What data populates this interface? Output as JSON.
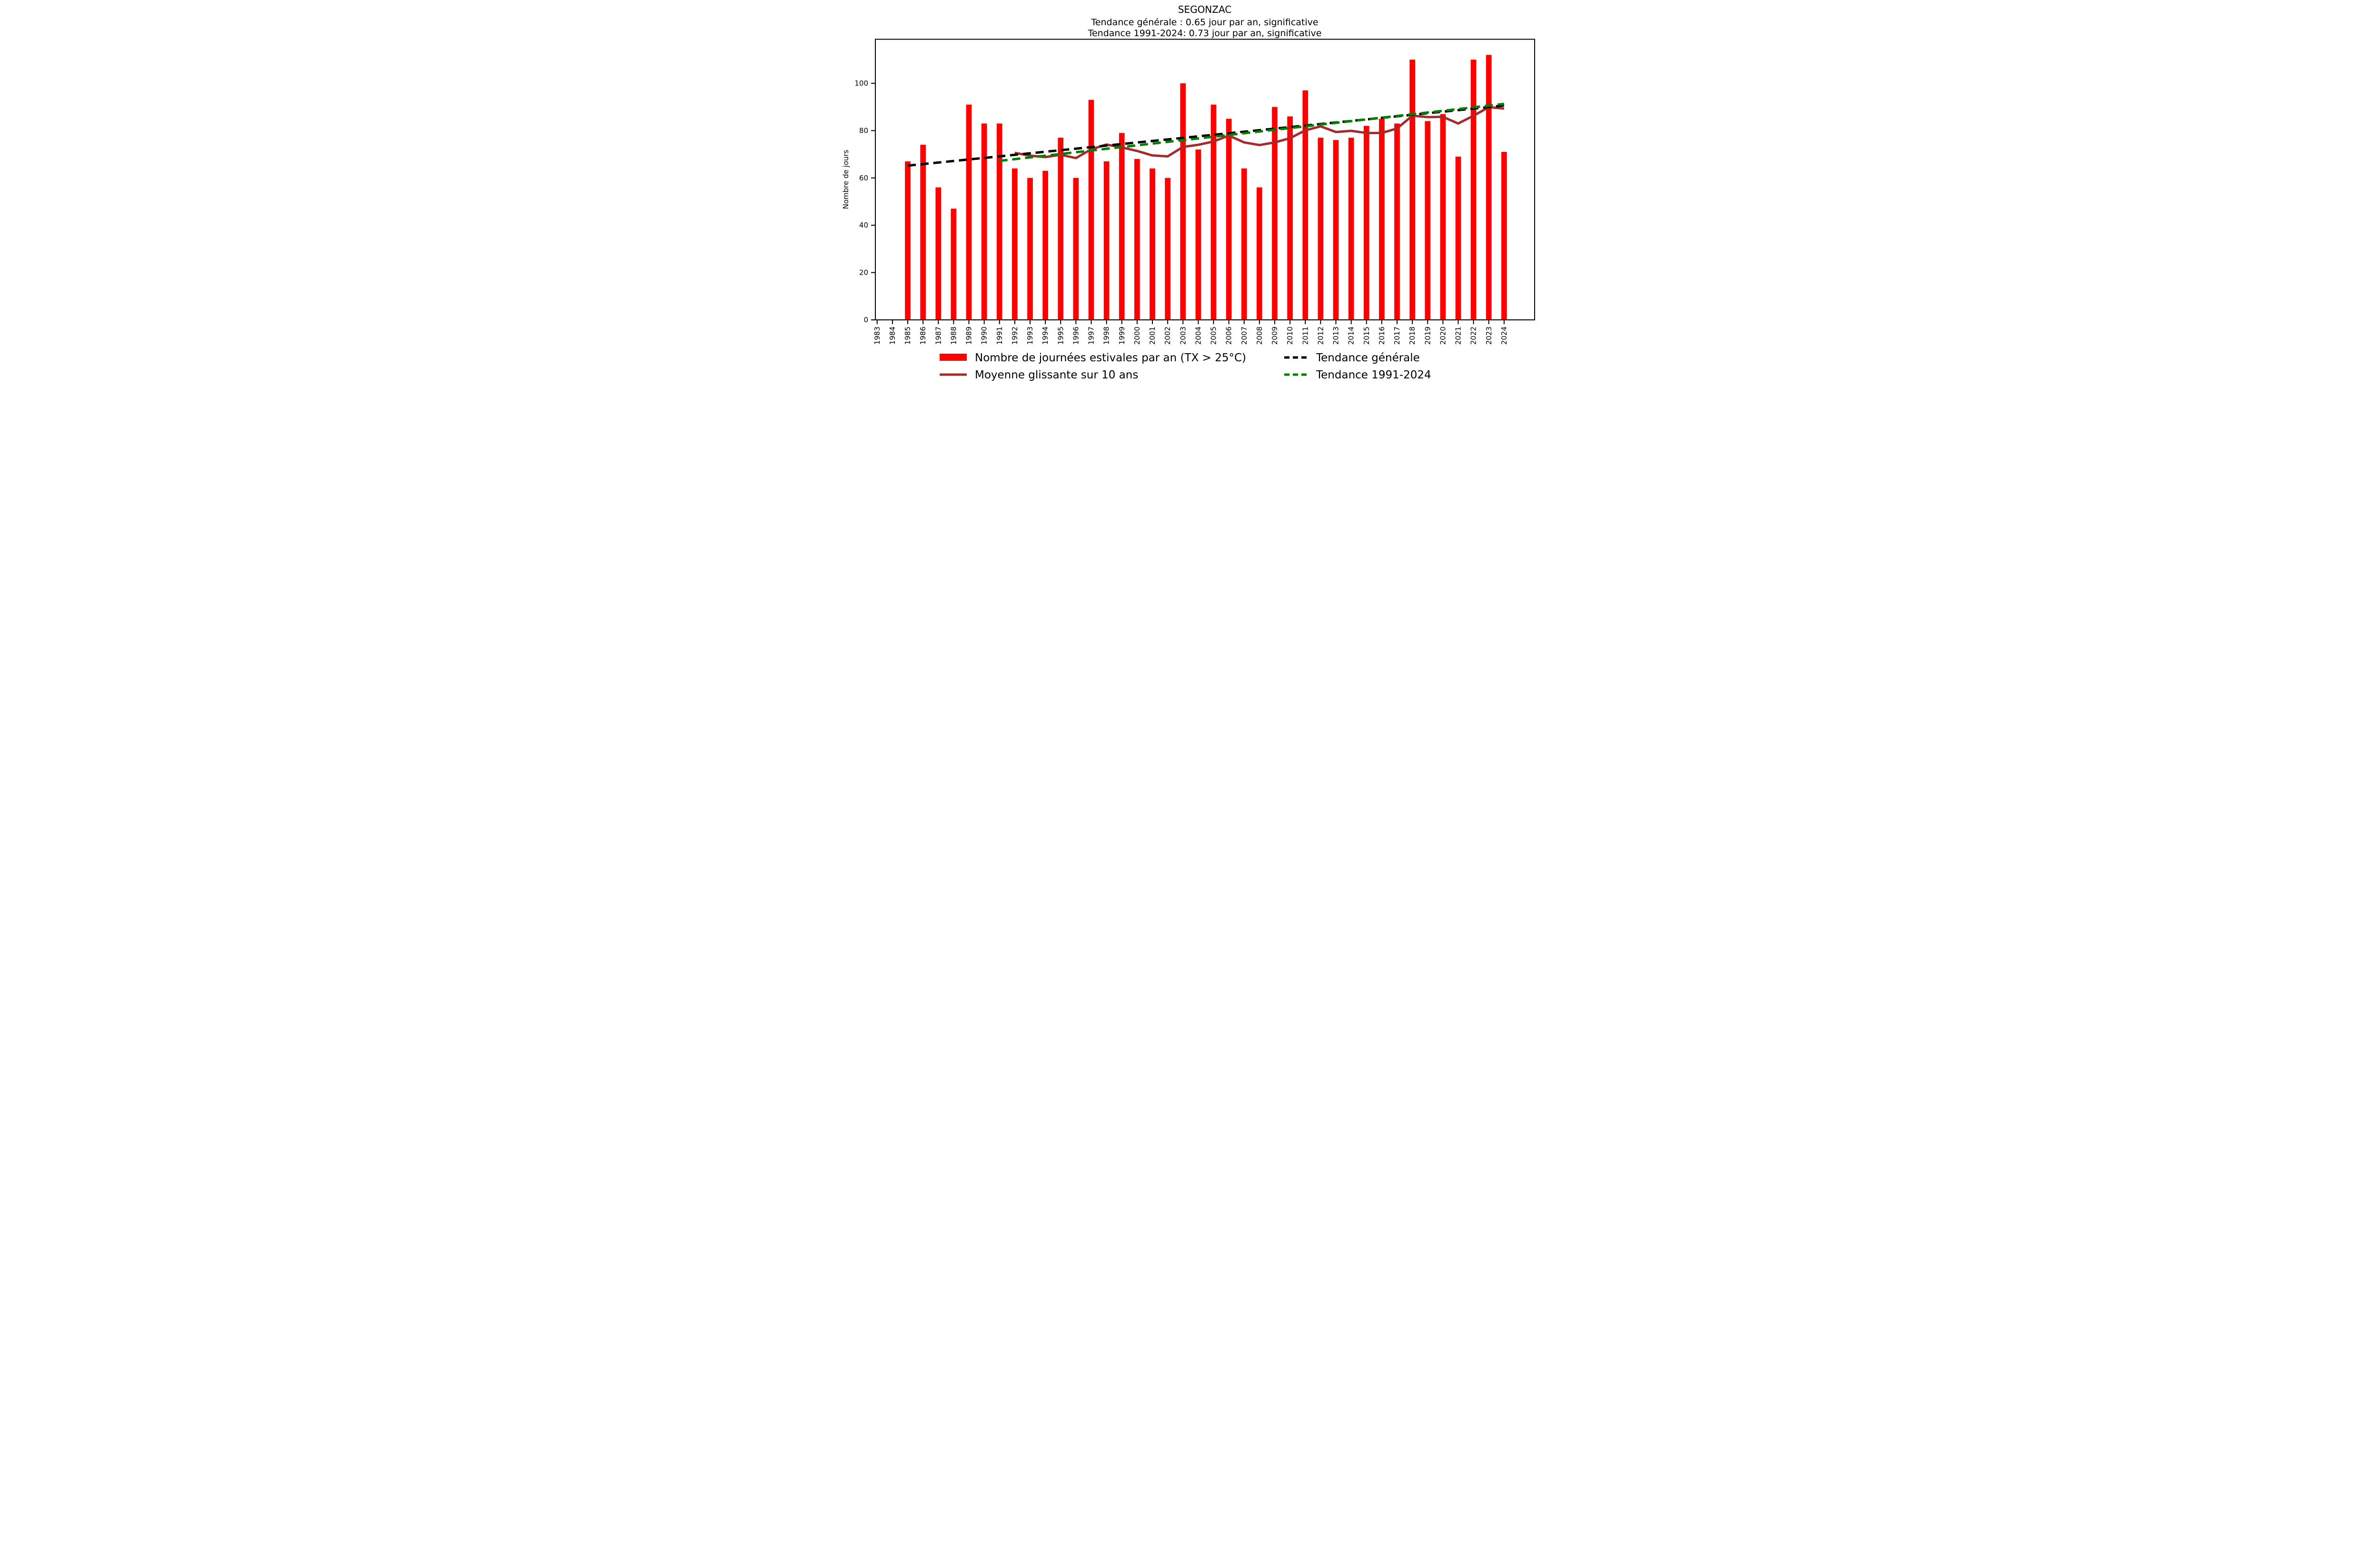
{
  "header": {
    "title": "SEGONZAC",
    "subtitle1": "Tendance générale : 0.65 jour par an, significative",
    "subtitle2": "Tendance 1991-2024: 0.73 jour par an, significative"
  },
  "axes": {
    "ylabel": "Nombre de jours",
    "yticks": [
      0,
      20,
      40,
      60,
      80,
      100
    ]
  },
  "colors": {
    "bar": "#ff0000",
    "moving_average": "#a52a2a",
    "trend_general": "#000000",
    "trend_recent": "#008000",
    "axis": "#000000"
  },
  "legend": {
    "items": [
      {
        "label": "Nombre de journées estivales par an (TX > 25°C)",
        "swatch": "bar",
        "color": "#ff0000"
      },
      {
        "label": "Moyenne glissante sur 10 ans",
        "swatch": "line",
        "color": "#a52a2a"
      },
      {
        "label": "Tendance générale",
        "swatch": "dashed-line",
        "color": "#000000"
      },
      {
        "label": "Tendance 1991-2024",
        "swatch": "dashed-line",
        "color": "#008000"
      }
    ]
  },
  "chart_data": {
    "type": "bar",
    "title": "SEGONZAC",
    "subtitle_lines": [
      "Tendance générale : 0.65 jour par an, significative",
      "Tendance 1991-2024: 0.73 jour par an, significative"
    ],
    "xlabel": "",
    "ylabel": "Nombre de jours",
    "ylim": [
      0,
      118.6
    ],
    "yticks": [
      0,
      20,
      40,
      60,
      80,
      100
    ],
    "grid": false,
    "legend_position": "bottom",
    "categories": [
      1983,
      1984,
      1985,
      1986,
      1987,
      1988,
      1989,
      1990,
      1991,
      1992,
      1993,
      1994,
      1995,
      1996,
      1997,
      1998,
      1999,
      2000,
      2001,
      2002,
      2003,
      2004,
      2005,
      2006,
      2007,
      2008,
      2009,
      2010,
      2011,
      2012,
      2013,
      2014,
      2015,
      2016,
      2017,
      2018,
      2019,
      2020,
      2021,
      2022,
      2023,
      2024
    ],
    "series": [
      {
        "name": "Nombre de journées estivales par an (TX > 25°C)",
        "type": "bar",
        "color": "#ff0000",
        "values": [
          null,
          null,
          67,
          74,
          56,
          47,
          91,
          83,
          83,
          64,
          60,
          63,
          77,
          60,
          93,
          67,
          79,
          68,
          64,
          60,
          100,
          72,
          91,
          85,
          64,
          56,
          90,
          86,
          97,
          77,
          76,
          77,
          82,
          85,
          83,
          110,
          84,
          87,
          69,
          110,
          112,
          71
        ]
      },
      {
        "name": "Moyenne glissante sur 10 ans",
        "type": "line",
        "color": "#a52a2a",
        "x_start": 1992,
        "values": [
          70.6,
          69.4,
          68.8,
          69.8,
          68.4,
          72.1,
          74.1,
          72.9,
          71.4,
          69.5,
          69.1,
          73.1,
          74.0,
          75.4,
          77.9,
          75.0,
          73.9,
          75.0,
          76.8,
          80.1,
          81.8,
          79.4,
          79.9,
          79.0,
          79.0,
          80.9,
          86.3,
          85.7,
          85.8,
          83.0,
          86.3,
          89.9,
          89.3
        ]
      },
      {
        "name": "Tendance générale",
        "type": "trend-dashed",
        "color": "#000000",
        "slope_per_year": 0.65,
        "x": [
          1985,
          2024
        ],
        "y": [
          65.2,
          90.6
        ]
      },
      {
        "name": "Tendance 1991-2024",
        "type": "trend-dashed",
        "color": "#008000",
        "slope_per_year": 0.73,
        "x": [
          1991,
          2024
        ],
        "y": [
          67.2,
          91.3
        ]
      }
    ]
  }
}
